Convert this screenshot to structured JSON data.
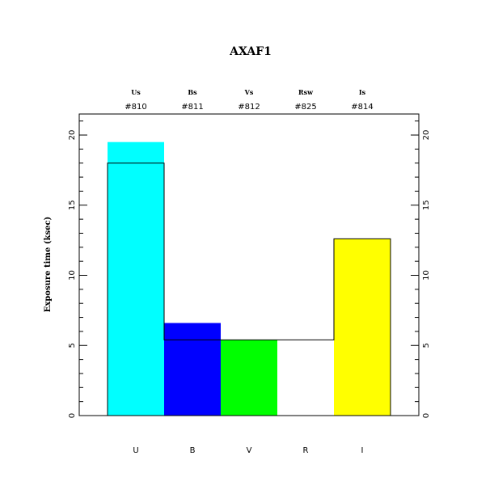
{
  "chart_data": {
    "type": "bar",
    "title": "AXAF1",
    "ylabel": "Exposure time (ksec)",
    "xlabel": "",
    "ylim": [
      0,
      21.5
    ],
    "yticks": [
      "0",
      "5",
      "10",
      "15",
      "20"
    ],
    "categories": [
      "U",
      "B",
      "V",
      "R",
      "I"
    ],
    "filter_names": [
      "Us",
      "Bs",
      "Vs",
      "Rsw",
      "Is"
    ],
    "filter_codes": [
      "#810",
      "#811",
      "#812",
      "#825",
      "#814"
    ],
    "series": [
      {
        "values": [
          19.5,
          6.6,
          5.4,
          0,
          12.6
        ],
        "colors": [
          "#00ffff",
          "#0000ff",
          "#00ff00",
          "#ffffff",
          "#ffff00"
        ]
      },
      {
        "style": "outline",
        "values": [
          18.0,
          5.4,
          5.4,
          5.4,
          12.6
        ]
      }
    ],
    "grid": false
  }
}
